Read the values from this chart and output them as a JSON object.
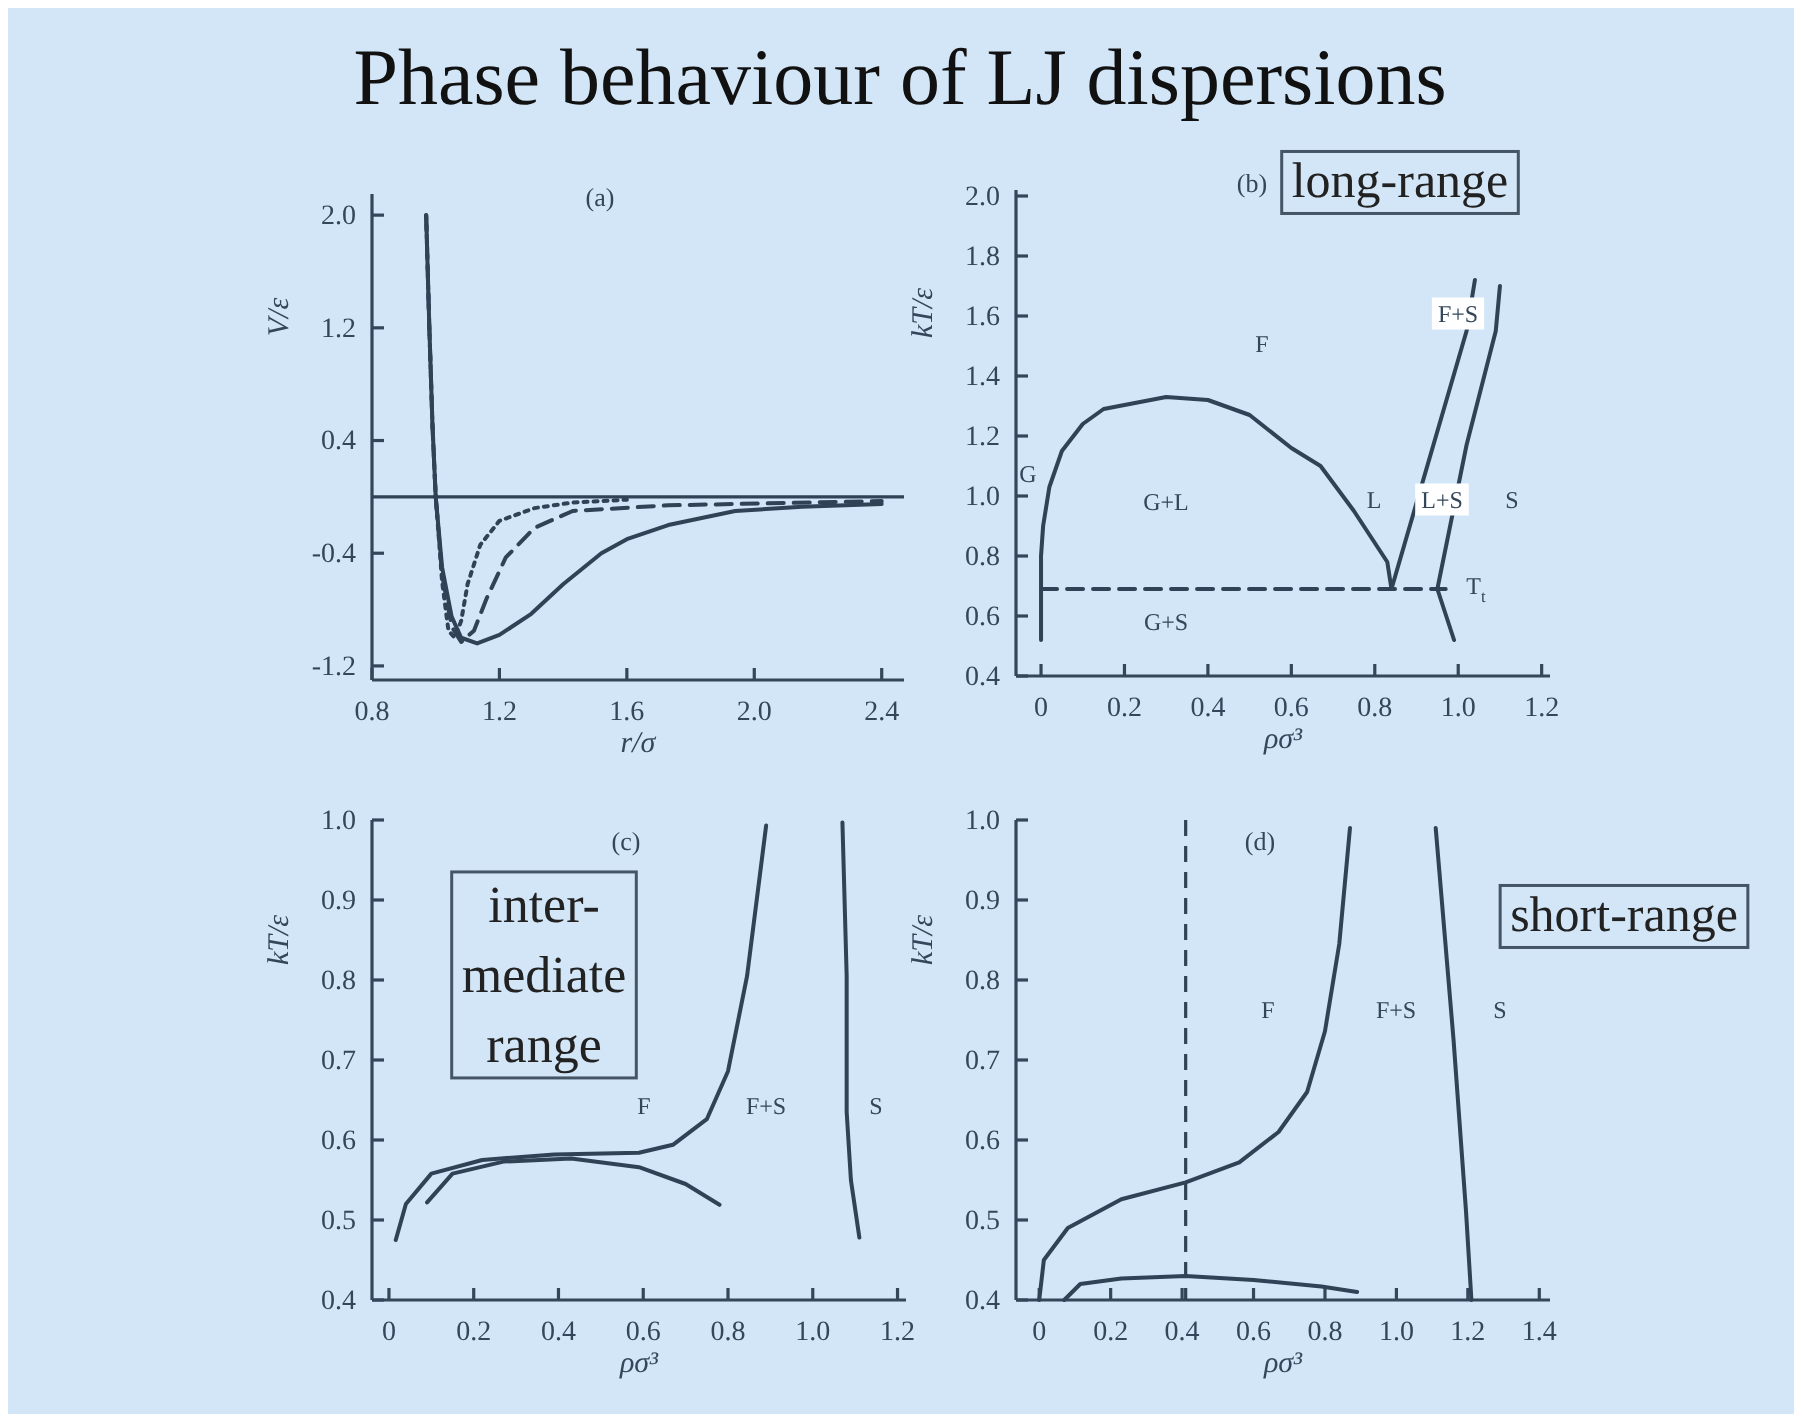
{
  "chart_data": [
    {
      "type": "line",
      "title": "Phase behaviour of LJ dispersions",
      "xlabel": "r/σ",
      "ylabel": "V/ε",
      "xlim": [
        0.8,
        2.47
      ],
      "ylim": [
        -1.3,
        2.15
      ],
      "xticks": [
        {
          "value": 0.8,
          "label": "0.8"
        },
        {
          "value": 1.2,
          "label": "1.2"
        },
        {
          "value": 1.6,
          "label": "1.6"
        },
        {
          "value": 2.0,
          "label": "2.0"
        },
        {
          "value": 2.4,
          "label": "2.4"
        }
      ],
      "yticks": [
        {
          "value": -1.2,
          "label": "-1.2"
        },
        {
          "value": -0.4,
          "label": "-0.4"
        },
        {
          "value": 0.4,
          "label": "0.4"
        },
        {
          "value": 1.2,
          "label": "1.2"
        },
        {
          "value": 2.0,
          "label": "2.0"
        }
      ],
      "ref_lines": [
        {
          "axis": "y",
          "value": 0,
          "color": "#2f4256",
          "line_style": "solid"
        }
      ],
      "annotations": [
        "(a)"
      ],
      "series": [
        {
          "color": "#2f4256",
          "line_style": "solid",
          "x": [
            0.97,
            0.98,
            0.99,
            1.0,
            1.02,
            1.05,
            1.08,
            1.13,
            1.2,
            1.3,
            1.4,
            1.52,
            1.6,
            1.73,
            1.94,
            2.15,
            2.4
          ],
          "values": [
            2.0,
            1.2,
            0.5,
            0,
            -0.5,
            -0.85,
            -1.0,
            -1.04,
            -0.98,
            -0.83,
            -0.62,
            -0.4,
            -0.3,
            -0.2,
            -0.1,
            -0.07,
            -0.05
          ]
        },
        {
          "color": "#2f4256",
          "line_style": "dashed",
          "x": [
            0.97,
            0.98,
            0.99,
            1.0,
            1.02,
            1.05,
            1.08,
            1.12,
            1.16,
            1.22,
            1.31,
            1.43,
            1.73,
            2.4
          ],
          "values": [
            2.0,
            1.2,
            0.5,
            0,
            -0.55,
            -0.92,
            -1.03,
            -0.95,
            -0.72,
            -0.43,
            -0.22,
            -0.1,
            -0.06,
            -0.03
          ]
        },
        {
          "color": "#2f4256",
          "line_style": "dotted",
          "x": [
            0.97,
            0.98,
            0.99,
            1.0,
            1.02,
            1.04,
            1.06,
            1.08,
            1.1,
            1.14,
            1.2,
            1.31,
            1.43,
            1.6
          ],
          "values": [
            2.0,
            1.2,
            0.5,
            0,
            -0.6,
            -0.95,
            -1.0,
            -0.88,
            -0.62,
            -0.34,
            -0.17,
            -0.08,
            -0.04,
            -0.02
          ]
        }
      ]
    },
    {
      "type": "line",
      "xlabel": "ρσ³",
      "ylabel": "kT/ε",
      "xlim": [
        -0.06,
        1.22
      ],
      "ylim": [
        0.4,
        2.02
      ],
      "xticks": [
        0,
        0.2,
        0.4,
        0.6,
        0.8,
        {
          "value": 1.0,
          "label": "1.0"
        },
        1.2
      ],
      "yticks": [
        0.4,
        0.6,
        0.8,
        {
          "value": 1.0,
          "label": "1.0"
        },
        1.2,
        1.4,
        1.6,
        1.8,
        {
          "value": 2.0,
          "label": "2.0"
        }
      ],
      "annotations": [
        "(b)",
        "long-range",
        "F",
        "G",
        "G+L",
        "L",
        "L+S",
        "S",
        "F+S",
        "T$_{t}$",
        "G+S"
      ],
      "series": [
        {
          "color": "#2f4256",
          "line_style": "solid",
          "x": [
            0,
            0,
            0.005,
            0.02,
            0.05,
            0.1,
            0.15,
            0.3,
            0.4,
            0.5,
            0.6,
            0.67,
            0.75,
            0.83,
            0.84
          ],
          "values": [
            0.52,
            0.8,
            0.9,
            1.03,
            1.15,
            1.24,
            1.29,
            1.33,
            1.32,
            1.27,
            1.16,
            1.1,
            0.95,
            0.78,
            0.69
          ]
        },
        {
          "color": "#2f4256",
          "line_style": "solid",
          "x": [
            0.84,
            1.02,
            1.04
          ],
          "values": [
            0.69,
            1.55,
            1.72
          ]
        },
        {
          "color": "#2f4256",
          "line_style": "solid",
          "x": [
            0.99,
            0.95,
            1.02,
            1.09,
            1.1
          ],
          "values": [
            0.52,
            0.69,
            1.17,
            1.55,
            1.7
          ]
        },
        {
          "color": "#2f4256",
          "line_style": "dashed",
          "x": [
            0,
            0.97
          ],
          "values": [
            0.69,
            0.69
          ]
        }
      ]
    },
    {
      "type": "line",
      "xlabel": "ρσ³",
      "ylabel": "kT/ε",
      "xlim": [
        -0.04,
        1.22
      ],
      "ylim": [
        0.4,
        1.0
      ],
      "xticks": [
        0,
        0.2,
        0.4,
        0.6,
        0.8,
        {
          "value": 1.0,
          "label": "1.0"
        },
        1.2
      ],
      "yticks": [
        0.4,
        0.5,
        0.6,
        0.7,
        0.8,
        0.9,
        {
          "value": 1.0,
          "label": "1.0"
        }
      ],
      "annotations": [
        "(c)",
        "inter-\nmediate\nrange",
        "F",
        "F+S",
        "S"
      ],
      "series": [
        {
          "color": "#2f4256",
          "line_style": "solid",
          "x": [
            0.016,
            0.04,
            0.1,
            0.22,
            0.39,
            0.59,
            0.67,
            0.75,
            0.8,
            0.845,
            0.89
          ],
          "values": [
            0.475,
            0.52,
            0.558,
            0.575,
            0.582,
            0.584,
            0.594,
            0.626,
            0.686,
            0.805,
            0.993
          ]
        },
        {
          "color": "#2f4256",
          "line_style": "solid",
          "x": [
            0.09,
            0.15,
            0.27,
            0.43,
            0.59,
            0.7,
            0.78
          ],
          "values": [
            0.522,
            0.558,
            0.573,
            0.577,
            0.566,
            0.545,
            0.519
          ]
        },
        {
          "color": "#2f4256",
          "line_style": "solid",
          "x": [
            1.07,
            1.08,
            1.08,
            1.09,
            1.11
          ],
          "values": [
            0.997,
            0.805,
            0.635,
            0.55,
            0.478
          ]
        }
      ]
    },
    {
      "type": "line",
      "xlabel": "ρσ³",
      "ylabel": "kT/ε",
      "xlim": [
        -0.065,
        1.43
      ],
      "ylim": [
        0.4,
        1.0
      ],
      "xticks": [
        0,
        0.2,
        0.4,
        0.6,
        0.8,
        {
          "value": 1.0,
          "label": "1.0"
        },
        1.2,
        1.4
      ],
      "yticks": [
        0.4,
        0.5,
        0.6,
        0.7,
        0.8,
        0.9,
        {
          "value": 1.0,
          "label": "1.0"
        }
      ],
      "ref_lines": [
        {
          "axis": "x",
          "value": 0.41,
          "color": "#2f4256",
          "line_style": "dashed"
        }
      ],
      "annotations": [
        "(d)",
        "short-range",
        "F",
        "F+S",
        "S"
      ],
      "series": [
        {
          "color": "#2f4256",
          "line_style": "solid",
          "x": [
            0,
            0.013,
            0.08,
            0.23,
            0.41,
            0.56,
            0.67,
            0.75,
            0.8,
            0.84,
            0.87
          ],
          "values": [
            0.4,
            0.45,
            0.49,
            0.526,
            0.547,
            0.572,
            0.61,
            0.66,
            0.736,
            0.845,
            0.99
          ]
        },
        {
          "color": "#2f4256",
          "line_style": "solid",
          "x": [
            0.07,
            0.115,
            0.23,
            0.41,
            0.6,
            0.79,
            0.89
          ],
          "values": [
            0.4,
            0.42,
            0.427,
            0.43,
            0.425,
            0.417,
            0.41
          ]
        },
        {
          "color": "#2f4256",
          "line_style": "solid",
          "x": [
            1.11,
            1.16,
            1.195,
            1.21
          ],
          "values": [
            0.99,
            0.725,
            0.51,
            0.4
          ]
        }
      ]
    }
  ]
}
